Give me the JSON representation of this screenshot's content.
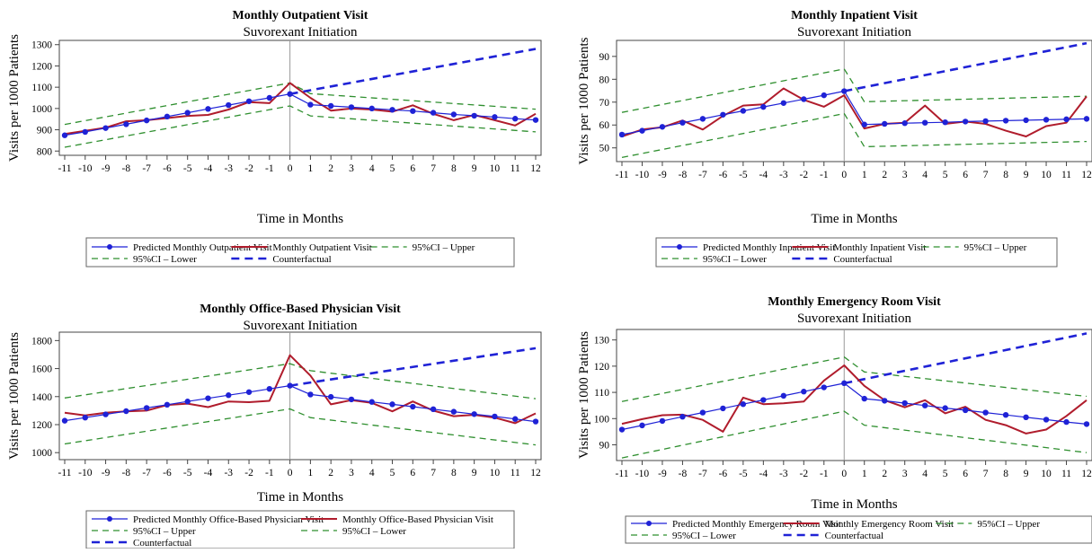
{
  "figure": {
    "background": "#ffffff"
  },
  "colors": {
    "predicted": "#1f22d6",
    "actual": "#b01c2c",
    "ci": "#2f8f2f",
    "counterfactual": "#1f22d6",
    "axis": "#444444",
    "vline": "#999999"
  },
  "chart_data": [
    {
      "type": "line",
      "title": "Monthly Outpatient Visit",
      "subtitle": "Suvorexant Initiation",
      "xlabel": "Time in Months",
      "ylabel": "Visits per 1000 Patients",
      "x": [
        -11,
        -10,
        -9,
        -8,
        -7,
        -6,
        -5,
        -4,
        -3,
        -2,
        -1,
        0,
        1,
        2,
        3,
        4,
        5,
        6,
        7,
        8,
        9,
        10,
        11,
        12
      ],
      "xticks": [
        "-11",
        "-10",
        "-9",
        "-8",
        "-7",
        "-6",
        "-5",
        "-4",
        "-3",
        "-2",
        "-1",
        "0",
        "1",
        "2",
        "3",
        "4",
        "5",
        "6",
        "7",
        "8",
        "9",
        "10",
        "11",
        "12"
      ],
      "xlim": [
        -11,
        12
      ],
      "ylim": [
        780,
        1320
      ],
      "yticks": [
        "800",
        "900",
        "1000",
        "1100",
        "1200",
        "1300"
      ],
      "legend_position": "bottom",
      "legend_rows": [
        [
          "s0",
          "s1",
          "s2"
        ],
        [
          "s3",
          "s4"
        ]
      ],
      "series": [
        {
          "name": "Predicted Monthly Outpatient Visit",
          "style": "predicted",
          "x": [
            -11,
            -10,
            -9,
            -8,
            -7,
            -6,
            -5,
            -4,
            -3,
            -2,
            -1,
            0,
            1,
            2,
            3,
            4,
            5,
            6,
            7,
            8,
            9,
            10,
            11,
            12
          ],
          "values": [
            874,
            890,
            908,
            926,
            944,
            962,
            980,
            998,
            1016,
            1034,
            1050,
            1068,
            1018,
            1012,
            1006,
            1000,
            994,
            988,
            980,
            972,
            966,
            960,
            952,
            946
          ]
        },
        {
          "name": "Monthly Outpatient Visit",
          "style": "actual",
          "x": [
            -11,
            -10,
            -9,
            -8,
            -7,
            -6,
            -5,
            -4,
            -3,
            -2,
            -1,
            0,
            1,
            2,
            3,
            4,
            5,
            6,
            7,
            8,
            9,
            10,
            11,
            12
          ],
          "values": [
            880,
            895,
            910,
            940,
            945,
            955,
            965,
            970,
            995,
            1030,
            1025,
            1120,
            1050,
            990,
            1000,
            995,
            985,
            1015,
            975,
            945,
            970,
            945,
            920,
            975
          ]
        },
        {
          "name": "95%CI – Upper",
          "style": "ci",
          "x": [
            -11,
            0,
            1,
            12
          ],
          "values": [
            925,
            1120,
            1070,
            997
          ]
        },
        {
          "name": "95%CI – Lower",
          "style": "ci",
          "x": [
            -11,
            0,
            1,
            12
          ],
          "values": [
            818,
            1012,
            965,
            890
          ]
        },
        {
          "name": "Counterfactual",
          "style": "counterfactual",
          "x": [
            0,
            12
          ],
          "values": [
            1068,
            1280
          ]
        }
      ]
    },
    {
      "type": "line",
      "title": "Monthly Inpatient Visit",
      "subtitle": "Suvorexant Initiation",
      "xlabel": "Time in Months",
      "ylabel": "Visits per 1000 Patients",
      "x": [
        -11,
        -10,
        -9,
        -8,
        -7,
        -6,
        -5,
        -4,
        -3,
        -2,
        -1,
        0,
        1,
        2,
        3,
        4,
        5,
        6,
        7,
        8,
        9,
        10,
        11,
        12
      ],
      "xticks": [
        "-11",
        "-10",
        "-9",
        "-8",
        "-7",
        "-6",
        "-5",
        "-4",
        "-3",
        "-2",
        "-1",
        "0",
        "1",
        "2",
        "3",
        "4",
        "5",
        "6",
        "7",
        "8",
        "9",
        "10",
        "11",
        "12"
      ],
      "xlim": [
        -11,
        12
      ],
      "ylim": [
        44,
        97
      ],
      "yticks": [
        "50",
        "60",
        "70",
        "80",
        "90"
      ],
      "legend_position": "bottom",
      "legend_rows": [
        [
          "s0",
          "s1",
          "s2"
        ],
        [
          "s3",
          "s4"
        ]
      ],
      "series": [
        {
          "name": "Predicted Monthly Inpatient Visit",
          "style": "predicted",
          "x": [
            -11,
            -10,
            -9,
            -8,
            -7,
            -6,
            -5,
            -4,
            -3,
            -2,
            -1,
            0,
            1,
            2,
            3,
            4,
            5,
            6,
            7,
            8,
            9,
            10,
            11,
            12
          ],
          "values": [
            55.8,
            57.5,
            59.2,
            61.0,
            62.7,
            64.5,
            66.2,
            67.9,
            69.6,
            71.3,
            73.0,
            74.8,
            60.2,
            60.5,
            60.8,
            61.0,
            61.2,
            61.5,
            61.7,
            61.9,
            62.1,
            62.3,
            62.5,
            62.7
          ]
        },
        {
          "name": "Monthly Inpatient Visit",
          "style": "actual",
          "x": [
            -11,
            -10,
            -9,
            -8,
            -7,
            -6,
            -5,
            -4,
            -3,
            -2,
            -1,
            0,
            1,
            2,
            3,
            4,
            5,
            6,
            7,
            8,
            9,
            10,
            11,
            12
          ],
          "values": [
            55.0,
            58.0,
            59.0,
            62.0,
            58.0,
            64.0,
            68.5,
            69.0,
            76.0,
            71.0,
            68.0,
            73.0,
            58.5,
            60.5,
            61.0,
            68.5,
            60.5,
            61.5,
            60.5,
            57.5,
            55.0,
            59.5,
            61.0,
            72.5
          ]
        },
        {
          "name": "95%CI – Upper",
          "style": "ci",
          "x": [
            -11,
            0,
            1,
            12
          ],
          "values": [
            65.5,
            84.5,
            70.2,
            72.6
          ]
        },
        {
          "name": "95%CI – Lower",
          "style": "ci",
          "x": [
            -11,
            0,
            1,
            12
          ],
          "values": [
            45.8,
            65.0,
            50.5,
            52.8
          ]
        },
        {
          "name": "Counterfactual",
          "style": "counterfactual",
          "x": [
            0,
            12
          ],
          "values": [
            74.8,
            95.8
          ]
        }
      ]
    },
    {
      "type": "line",
      "title": "Monthly Office-Based Physician Visit",
      "subtitle": "Suvorexant Initiation",
      "xlabel": "Time in Months",
      "ylabel": "Visits per 1000 Patients",
      "x": [
        -11,
        -10,
        -9,
        -8,
        -7,
        -6,
        -5,
        -4,
        -3,
        -2,
        -1,
        0,
        1,
        2,
        3,
        4,
        5,
        6,
        7,
        8,
        9,
        10,
        11,
        12
      ],
      "xticks": [
        "-11",
        "-10",
        "-9",
        "-8",
        "-7",
        "-6",
        "-5",
        "-4",
        "-3",
        "-2",
        "-1",
        "0",
        "1",
        "2",
        "3",
        "4",
        "5",
        "6",
        "7",
        "8",
        "9",
        "10",
        "11",
        "12"
      ],
      "xlim": [
        -11,
        12
      ],
      "ylim": [
        950,
        1860
      ],
      "yticks": [
        "1000",
        "1200",
        "1400",
        "1600",
        "1800"
      ],
      "legend_position": "bottom",
      "legend_rows": [
        [
          "s0",
          "s1"
        ],
        [
          "s2",
          "s3"
        ],
        [
          "s4"
        ]
      ],
      "series": [
        {
          "name": "Predicted Monthly Office-Based Physician Visit",
          "style": "predicted",
          "x": [
            -11,
            -10,
            -9,
            -8,
            -7,
            -6,
            -5,
            -4,
            -3,
            -2,
            -1,
            0,
            1,
            2,
            3,
            4,
            5,
            6,
            7,
            8,
            9,
            10,
            11,
            12
          ],
          "values": [
            1228,
            1250,
            1273,
            1296,
            1319,
            1342,
            1365,
            1388,
            1410,
            1432,
            1455,
            1478,
            1415,
            1398,
            1380,
            1362,
            1345,
            1328,
            1310,
            1292,
            1275,
            1258,
            1240,
            1222
          ]
        },
        {
          "name": "Monthly Office-Based Physician Visit",
          "style": "actual",
          "x": [
            -11,
            -10,
            -9,
            -8,
            -7,
            -6,
            -5,
            -4,
            -3,
            -2,
            -1,
            0,
            1,
            2,
            3,
            4,
            5,
            6,
            7,
            8,
            9,
            10,
            11,
            12
          ],
          "values": [
            1285,
            1265,
            1285,
            1295,
            1300,
            1340,
            1350,
            1325,
            1365,
            1360,
            1370,
            1695,
            1550,
            1345,
            1375,
            1355,
            1295,
            1365,
            1300,
            1260,
            1270,
            1250,
            1210,
            1280
          ]
        },
        {
          "name": "95%CI – Upper",
          "style": "ci",
          "x": [
            -11,
            0,
            1,
            12
          ],
          "values": [
            1390,
            1635,
            1585,
            1385
          ]
        },
        {
          "name": "95%CI – Lower",
          "style": "ci",
          "x": [
            -11,
            0,
            1,
            12
          ],
          "values": [
            1062,
            1312,
            1250,
            1055
          ]
        },
        {
          "name": "Counterfactual",
          "style": "counterfactual",
          "x": [
            0,
            12
          ],
          "values": [
            1478,
            1745
          ]
        }
      ]
    },
    {
      "type": "line",
      "title": "Monthly Emergency Room Visit",
      "subtitle": "Suvorexant Initiation",
      "xlabel": "Time in Months",
      "ylabel": "Visits per 1000 Patients",
      "x": [
        -11,
        -10,
        -9,
        -8,
        -7,
        -6,
        -5,
        -4,
        -3,
        -2,
        -1,
        0,
        1,
        2,
        3,
        4,
        5,
        6,
        7,
        8,
        9,
        10,
        11,
        12
      ],
      "xticks": [
        "-11",
        "-10",
        "-9",
        "-8",
        "-7",
        "-6",
        "-5",
        "-4",
        "-3",
        "-2",
        "-1",
        "0",
        "1",
        "2",
        "3",
        "4",
        "5",
        "6",
        "7",
        "8",
        "9",
        "10",
        "11",
        "12"
      ],
      "xlim": [
        -11,
        12
      ],
      "ylim": [
        84,
        134
      ],
      "yticks": [
        "90",
        "100",
        "110",
        "120",
        "130"
      ],
      "legend_position": "bottom",
      "legend_rows": [
        [
          "s0",
          "s1",
          "s2"
        ],
        [
          "s3",
          "s4"
        ]
      ],
      "series": [
        {
          "name": "Predicted Monthly Emergency Room Visit",
          "style": "predicted",
          "x": [
            -11,
            -10,
            -9,
            -8,
            -7,
            -6,
            -5,
            -4,
            -3,
            -2,
            -1,
            0,
            1,
            2,
            3,
            4,
            5,
            6,
            7,
            8,
            9,
            10,
            11,
            12
          ],
          "values": [
            95.8,
            97.4,
            99.1,
            100.7,
            102.3,
            103.9,
            105.5,
            107.1,
            108.7,
            110.3,
            111.9,
            113.5,
            107.6,
            106.8,
            105.9,
            105.0,
            104.0,
            103.2,
            102.3,
            101.4,
            100.5,
            99.6,
            98.7,
            97.9
          ]
        },
        {
          "name": "Monthly Emergency Room Visit",
          "style": "actual",
          "x": [
            -11,
            -10,
            -9,
            -8,
            -7,
            -6,
            -5,
            -4,
            -3,
            -2,
            -1,
            0,
            1,
            2,
            3,
            4,
            5,
            6,
            7,
            8,
            9,
            10,
            11,
            12
          ],
          "values": [
            98.0,
            99.8,
            101.3,
            101.5,
            99.5,
            95.0,
            108.0,
            105.5,
            105.8,
            106.5,
            114.5,
            120.3,
            112.5,
            107.0,
            104.3,
            107.0,
            102.0,
            104.5,
            99.5,
            97.5,
            94.3,
            95.8,
            101.0,
            107.0
          ]
        },
        {
          "name": "95%CI – Upper",
          "style": "ci",
          "x": [
            -11,
            0,
            1,
            12
          ],
          "values": [
            106.5,
            123.5,
            117.8,
            108.5
          ]
        },
        {
          "name": "95%CI – Lower",
          "style": "ci",
          "x": [
            -11,
            0,
            1,
            12
          ],
          "values": [
            85.0,
            102.8,
            97.5,
            87.0
          ]
        },
        {
          "name": "Counterfactual",
          "style": "counterfactual",
          "x": [
            0,
            12
          ],
          "values": [
            113.5,
            132.5
          ]
        }
      ]
    }
  ]
}
